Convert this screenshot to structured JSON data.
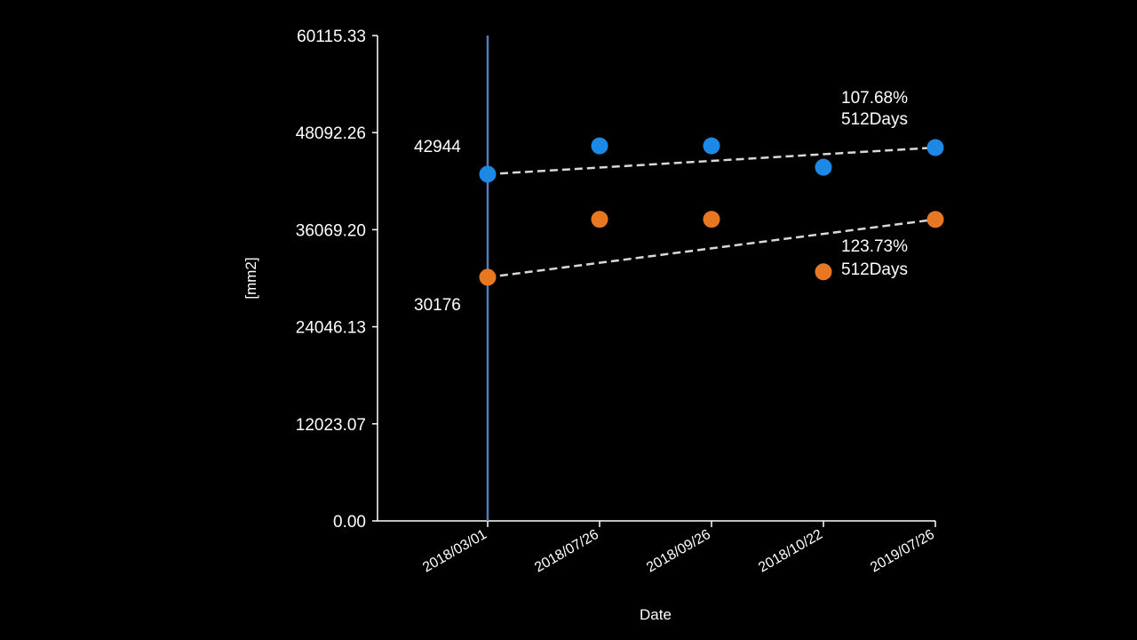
{
  "chart_data": {
    "type": "scatter",
    "title": "",
    "xlabel": "Date",
    "ylabel": "[mm2]",
    "ylim": [
      0,
      60115.33
    ],
    "yticks": [
      "0.00",
      "12023.07",
      "24046.13",
      "36069.20",
      "48092.26",
      "60115.33"
    ],
    "categories": [
      "2018/03/01",
      "2018/07/26",
      "2018/09/26",
      "2018/10/22",
      "2019/07/26"
    ],
    "series": [
      {
        "name": "blue",
        "color": "#1e88e5",
        "values": [
          42944,
          46450,
          46450,
          43800,
          46240
        ],
        "trend": {
          "from": 0,
          "to": 4
        }
      },
      {
        "name": "orange",
        "color": "#e87722",
        "values": [
          30176,
          37350,
          37350,
          30850,
          37340
        ],
        "trend": {
          "from": 0,
          "to": 4
        }
      }
    ],
    "vertical_marker": "2018/03/01",
    "annotations": [
      {
        "text": "42944",
        "series": 0,
        "role": "start-value"
      },
      {
        "text": "30176",
        "series": 1,
        "role": "start-value"
      },
      {
        "text": "107.68%",
        "series": 0,
        "role": "growth"
      },
      {
        "text": "512Days",
        "series": 0,
        "role": "duration"
      },
      {
        "text": "123.73%",
        "series": 1,
        "role": "growth"
      },
      {
        "text": "512Days",
        "series": 1,
        "role": "duration"
      }
    ],
    "axis_color": "#ffffff",
    "marker_color": "#5a7ab8",
    "trend_color": "#d8d8d8"
  }
}
